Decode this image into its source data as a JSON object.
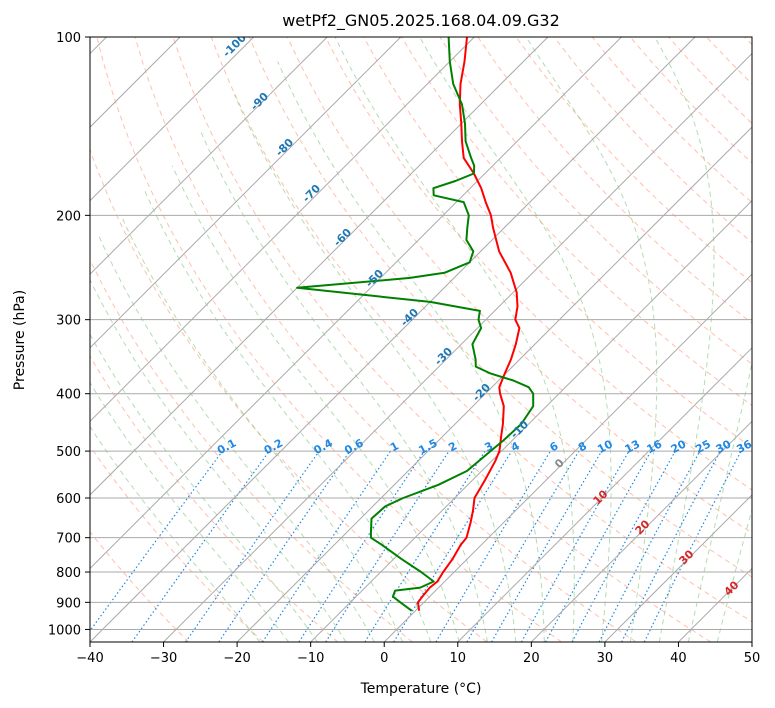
{
  "chart_data": {
    "type": "line",
    "subtype": "skew-t log-p diagram",
    "title": "wetPf2_GN05.2025.168.04.09.G32",
    "xlabel": "Temperature (°C)",
    "ylabel": "Pressure (hPa)",
    "xlim": [
      -40,
      50
    ],
    "ylim": [
      1050,
      100
    ],
    "y_scale": "log",
    "x_ticks": [
      -40,
      -30,
      -20,
      -10,
      0,
      10,
      20,
      30,
      40,
      50
    ],
    "y_ticks": [
      1000,
      900,
      800,
      700,
      600,
      500,
      400,
      300,
      200,
      100
    ],
    "grid": "on",
    "colors": {
      "temperature": "#ff0000",
      "dewpoint": "#008000",
      "isotherm_labels": "#1f77b4",
      "mixing_ratio": "#1e88e5",
      "dry_adiabat": "#ff8c66",
      "moist_adiabat": "#66bb66",
      "isotherm": "#aaaaaa",
      "moist_label": "#d62728"
    },
    "isotherm_labels": [
      "-100",
      "-90",
      "-80",
      "-70",
      "-60",
      "-50",
      "-40",
      "-30",
      "-20",
      "-10"
    ],
    "isotherm_label_temps": [
      -100,
      -90,
      -80,
      -70,
      -60,
      -50,
      -40,
      -30,
      -20,
      -10
    ],
    "mixing_ratio_labels": [
      "0.1",
      "0.2",
      "0.4",
      "0.6",
      "1",
      "1.5",
      "2",
      "3",
      "4",
      "6",
      "8",
      "10",
      "13",
      "16",
      "20",
      "25",
      "30",
      "36"
    ],
    "mixing_ratio_values": [
      0.1,
      0.2,
      0.4,
      0.6,
      1,
      1.5,
      2,
      3,
      4,
      6,
      8,
      10,
      13,
      16,
      20,
      25,
      30,
      36
    ],
    "moist_adiabat_labels": [
      "0",
      "10",
      "20",
      "30",
      "40"
    ],
    "series": [
      {
        "name": "Temperature",
        "points": [
          [
            930,
            0.5
          ],
          [
            900,
            -0.8
          ],
          [
            880,
            -1.0
          ],
          [
            850,
            -1.2
          ],
          [
            830,
            -1.0
          ],
          [
            800,
            -1.5
          ],
          [
            760,
            -2.0
          ],
          [
            720,
            -2.8
          ],
          [
            700,
            -3.0
          ],
          [
            660,
            -4.5
          ],
          [
            630,
            -5.8
          ],
          [
            600,
            -7.3
          ],
          [
            560,
            -8.3
          ],
          [
            520,
            -9.5
          ],
          [
            500,
            -10.3
          ],
          [
            470,
            -12.2
          ],
          [
            450,
            -13.5
          ],
          [
            420,
            -15.8
          ],
          [
            400,
            -18.0
          ],
          [
            390,
            -19.0
          ],
          [
            370,
            -20.1
          ],
          [
            350,
            -21.2
          ],
          [
            330,
            -22.6
          ],
          [
            310,
            -24.3
          ],
          [
            300,
            -26.0
          ],
          [
            285,
            -27.5
          ],
          [
            270,
            -29.5
          ],
          [
            250,
            -33.0
          ],
          [
            230,
            -37.5
          ],
          [
            210,
            -41.5
          ],
          [
            200,
            -43.5
          ],
          [
            190,
            -46.0
          ],
          [
            180,
            -48.5
          ],
          [
            170,
            -51.5
          ],
          [
            160,
            -55.0
          ],
          [
            150,
            -57.5
          ],
          [
            140,
            -60.0
          ],
          [
            130,
            -62.8
          ],
          [
            120,
            -65.5
          ],
          [
            110,
            -68.0
          ],
          [
            100,
            -71.0
          ]
        ]
      },
      {
        "name": "Dewpoint",
        "points": [
          [
            930,
            -0.5
          ],
          [
            900,
            -3.2
          ],
          [
            880,
            -5.0
          ],
          [
            860,
            -5.5
          ],
          [
            850,
            -2.5
          ],
          [
            830,
            -1.5
          ],
          [
            800,
            -4.5
          ],
          [
            760,
            -9.0
          ],
          [
            720,
            -13.5
          ],
          [
            700,
            -16.0
          ],
          [
            680,
            -17.0
          ],
          [
            650,
            -18.5
          ],
          [
            620,
            -18.3
          ],
          [
            600,
            -17.0
          ],
          [
            570,
            -14.0
          ],
          [
            540,
            -12.0
          ],
          [
            500,
            -11.5
          ],
          [
            480,
            -11.2
          ],
          [
            450,
            -11.0
          ],
          [
            420,
            -11.8
          ],
          [
            400,
            -13.5
          ],
          [
            390,
            -15.0
          ],
          [
            380,
            -18.0
          ],
          [
            370,
            -22.0
          ],
          [
            360,
            -25.0
          ],
          [
            350,
            -26.0
          ],
          [
            330,
            -28.5
          ],
          [
            310,
            -29.5
          ],
          [
            300,
            -31.0
          ],
          [
            290,
            -32.0
          ],
          [
            280,
            -40.0
          ],
          [
            265,
            -60.0
          ],
          [
            255,
            -46.0
          ],
          [
            250,
            -42.0
          ],
          [
            240,
            -40.0
          ],
          [
            230,
            -41.0
          ],
          [
            220,
            -43.5
          ],
          [
            210,
            -45.0
          ],
          [
            200,
            -46.5
          ],
          [
            190,
            -49.0
          ],
          [
            185,
            -54.0
          ],
          [
            180,
            -55.0
          ],
          [
            175,
            -53.0
          ],
          [
            170,
            -51.5
          ],
          [
            165,
            -52.5
          ],
          [
            160,
            -54.0
          ],
          [
            150,
            -57.0
          ],
          [
            140,
            -59.5
          ],
          [
            130,
            -62.5
          ],
          [
            120,
            -66.5
          ],
          [
            110,
            -70.0
          ],
          [
            100,
            -73.5
          ]
        ]
      }
    ]
  }
}
